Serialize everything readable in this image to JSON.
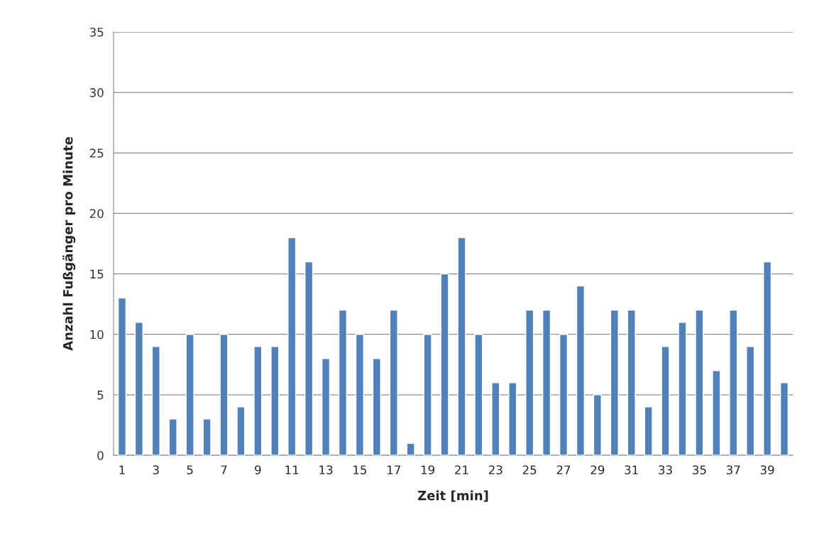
{
  "chart_data": {
    "type": "bar",
    "xlabel": "Zeit [min]",
    "ylabel": "Anzahl Fußgänger pro Minute",
    "categories": [
      "1",
      null,
      "3",
      null,
      "5",
      null,
      "7",
      null,
      "9",
      null,
      "11",
      null,
      "13",
      null,
      "15",
      null,
      "17",
      null,
      "19",
      null,
      "21",
      null,
      "23",
      null,
      "25",
      null,
      "27",
      null,
      "29",
      null,
      "31",
      null,
      "33",
      null,
      "35",
      null,
      "37",
      null,
      "39",
      null
    ],
    "values": [
      13,
      11,
      9,
      3,
      10,
      3,
      10,
      4,
      9,
      9,
      18,
      16,
      8,
      12,
      10,
      8,
      12,
      1,
      10,
      15,
      18,
      10,
      6,
      6,
      12,
      12,
      10,
      14,
      5,
      12,
      12,
      4,
      9,
      11,
      12,
      7,
      12,
      9,
      16,
      6
    ],
    "color": "#4f81bd",
    "ylim": [
      0,
      35
    ],
    "yticks": [
      0,
      5,
      10,
      15,
      20,
      25,
      30,
      35
    ],
    "grid": "y",
    "legend": false
  }
}
